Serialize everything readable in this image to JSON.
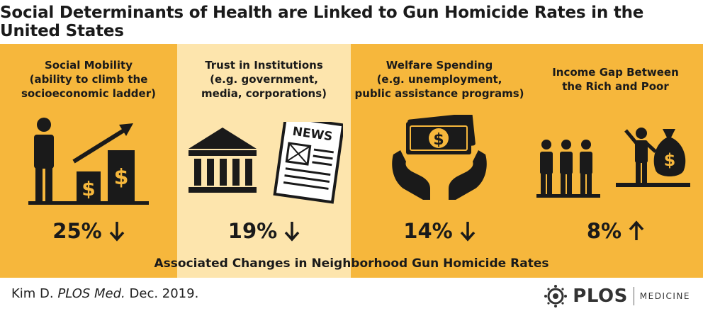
{
  "title": "Social Determinants of Health are Linked to Gun Homicide Rates in the United States",
  "colors": {
    "panel_dark": "#f6b73c",
    "panel_light": "#fde5ad",
    "ink": "#1a1a1a"
  },
  "panels": [
    {
      "heading": "Social Mobility\n(ability to climb the\nsocioeconomic ladder)",
      "value": "25%",
      "direction": "down",
      "icon": "person-climbing-chart-icon"
    },
    {
      "heading": "Trust in Institutions\n(e.g. government,\nmedia, corporations)",
      "value": "19%",
      "direction": "down",
      "icon": "government-building-newspaper-icon"
    },
    {
      "heading": "Welfare Spending\n(e.g. unemployment,\npublic assistance programs)",
      "value": "14%",
      "direction": "down",
      "icon": "hands-holding-money-icon"
    },
    {
      "heading": "Income Gap Between\nthe Rich and Poor",
      "value": "8%",
      "direction": "up",
      "icon": "rich-vs-poor-icon"
    }
  ],
  "news_label": "NEWS",
  "caption": "Associated Changes in Neighborhood Gun Homicide Rates",
  "citation": {
    "prefix": "Kim D. ",
    "journal": "PLOS Med.",
    "suffix": " Dec. 2019."
  },
  "logo": {
    "word": "PLOS",
    "sub": "MEDICINE"
  }
}
